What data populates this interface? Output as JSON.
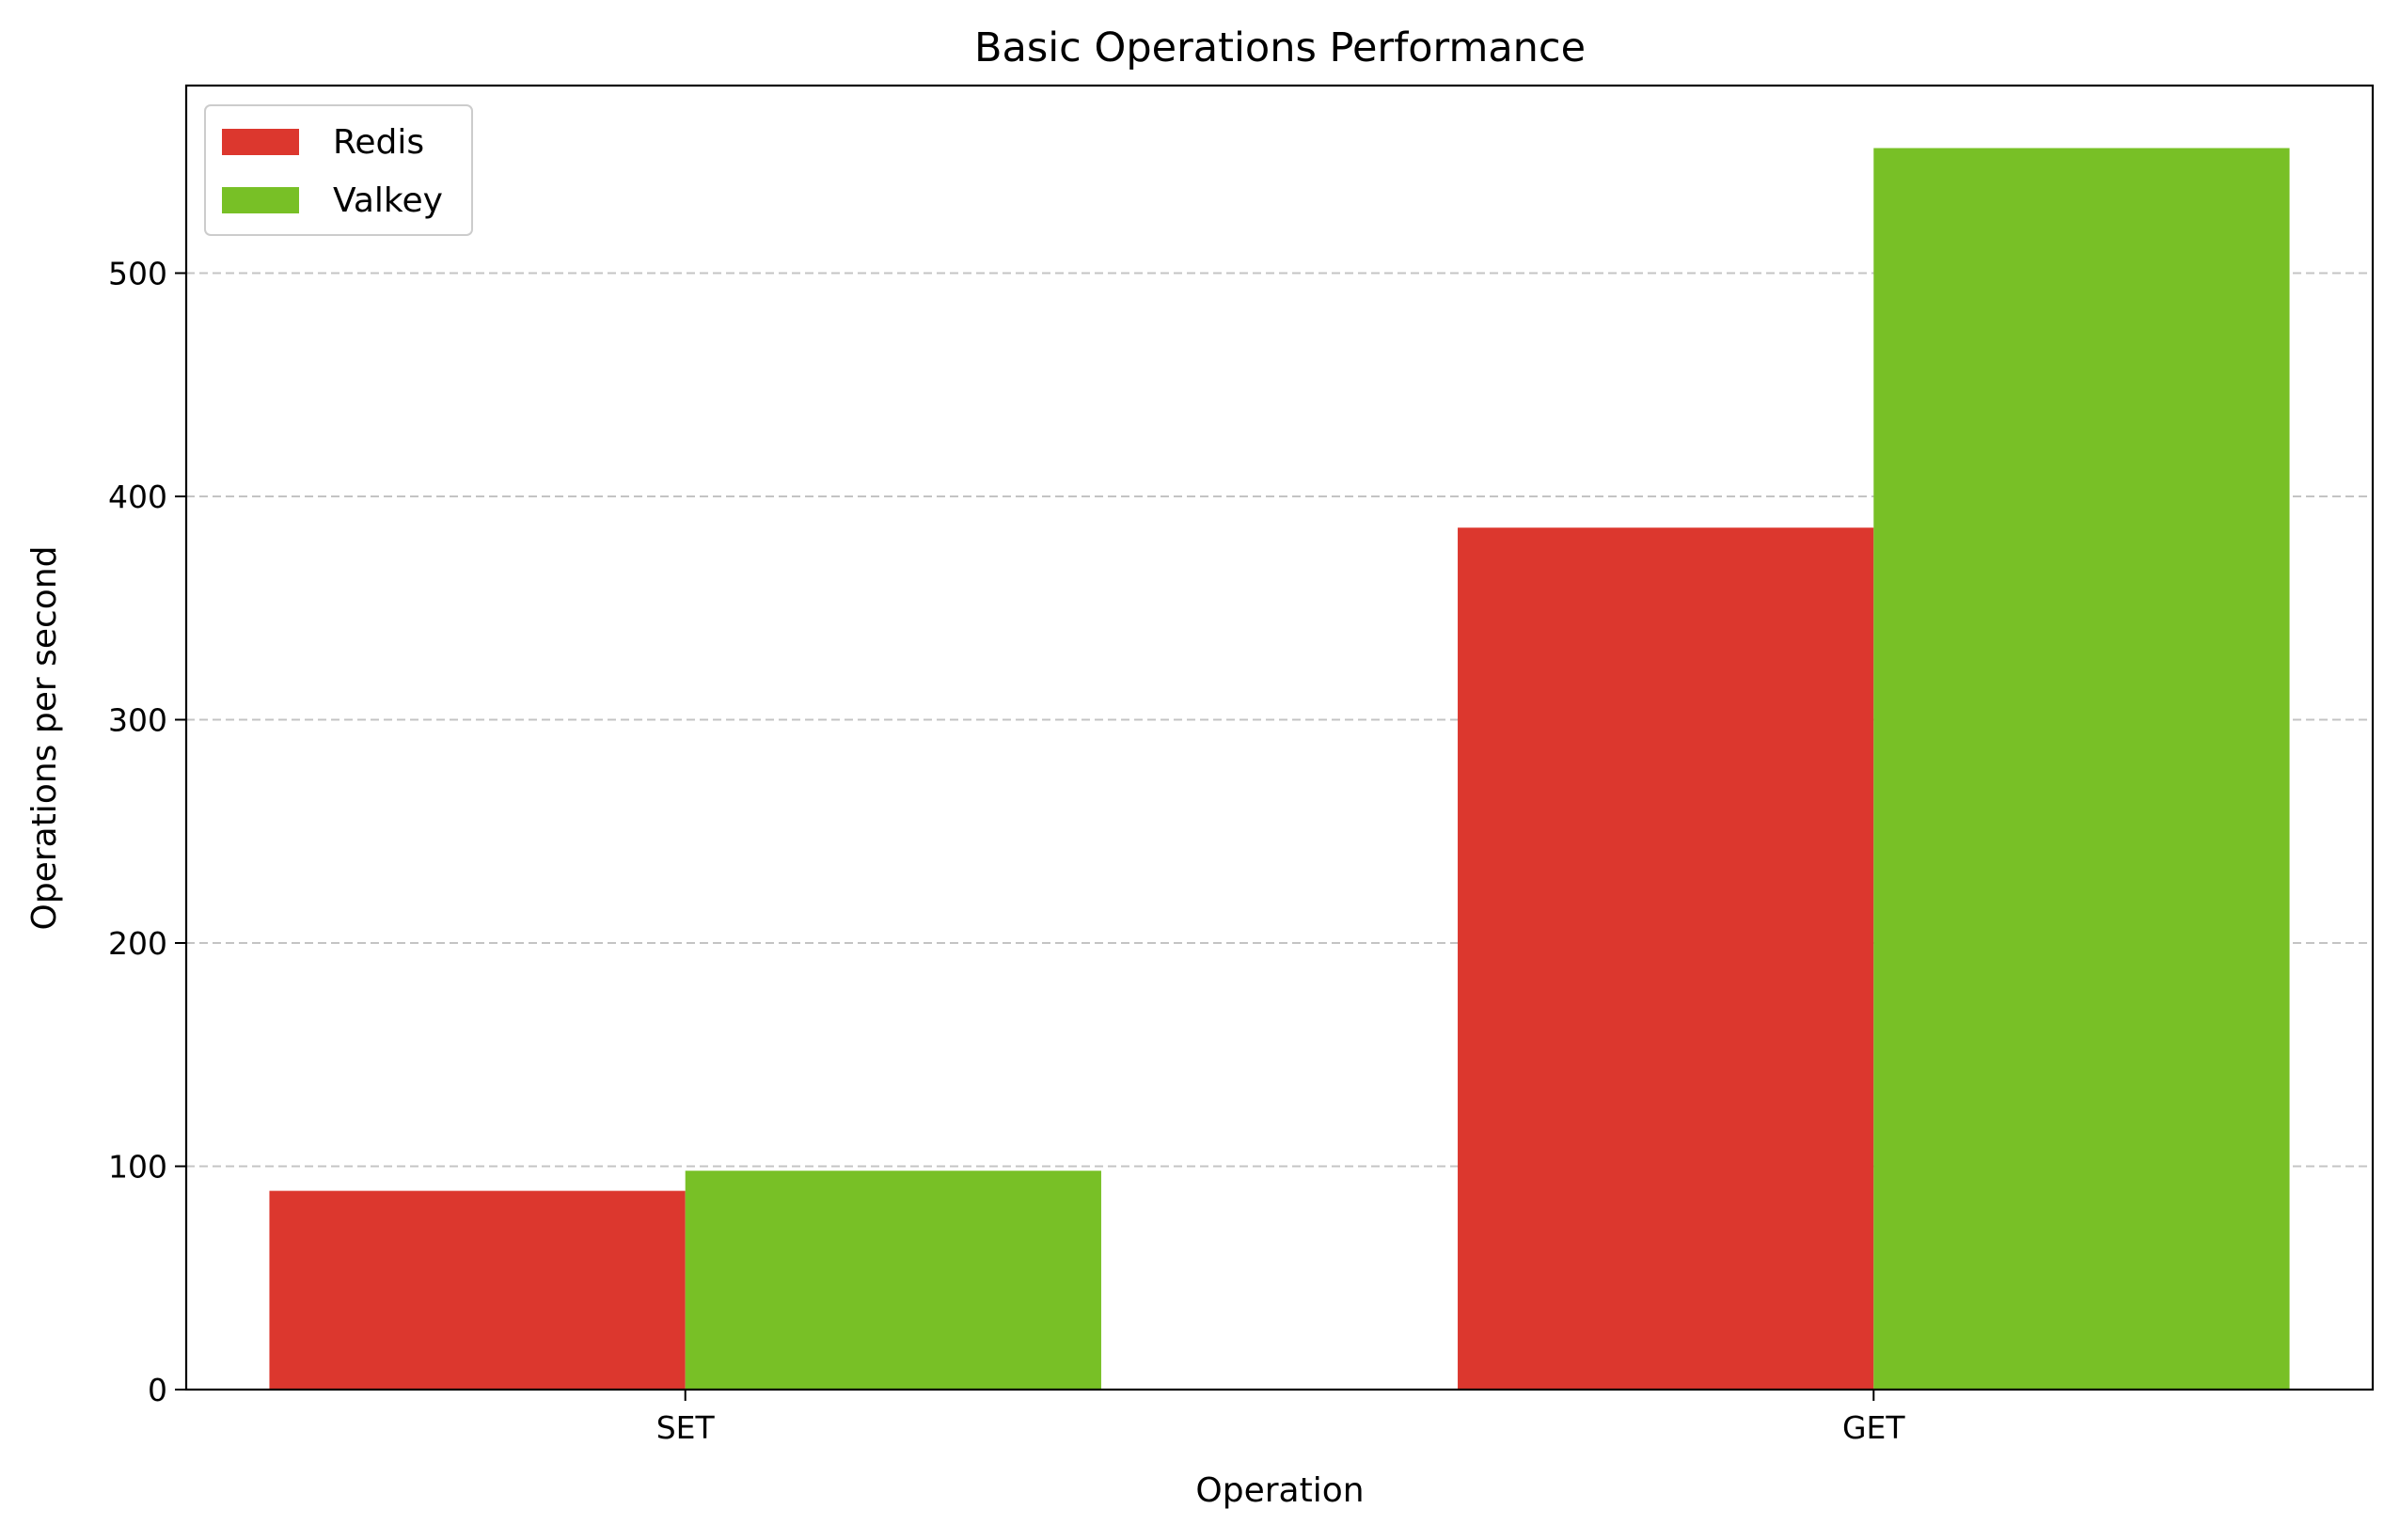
{
  "chart_data": {
    "type": "bar",
    "title": "Basic Operations Performance",
    "xlabel": "Operation",
    "ylabel": "Operations per second",
    "categories": [
      "SET",
      "GET"
    ],
    "series": [
      {
        "name": "Redis",
        "values": [
          89,
          386
        ],
        "color": "#dc372e"
      },
      {
        "name": "Valkey",
        "values": [
          98,
          556
        ],
        "color": "#78c026"
      }
    ],
    "ylim": [
      0,
      584
    ],
    "yticks": [
      0,
      100,
      200,
      300,
      400,
      500
    ],
    "grid": "y-dashed",
    "legend": "top-left"
  }
}
